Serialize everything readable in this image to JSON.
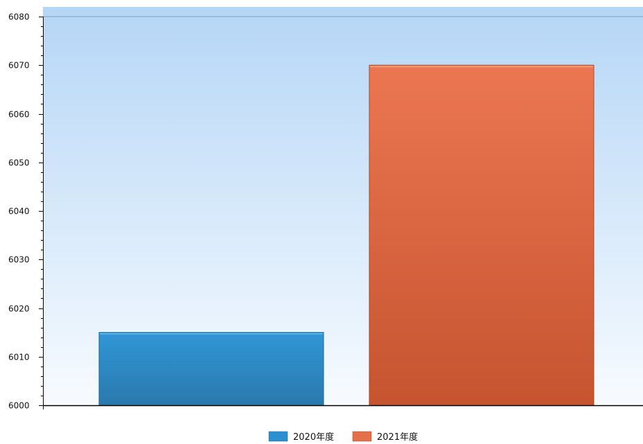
{
  "chart_data": {
    "type": "bar",
    "categories": [
      "2020年度",
      "2021年度"
    ],
    "values": [
      6015,
      6070
    ],
    "title": "",
    "xlabel": "",
    "ylabel": "",
    "ylim": [
      6000,
      6080
    ],
    "yticks": [
      6000,
      6010,
      6020,
      6030,
      6040,
      6050,
      6060,
      6070,
      6080
    ],
    "grid": false,
    "legend": "bottom",
    "colors": [
      "#2b8fd0",
      "#e4704a"
    ]
  }
}
